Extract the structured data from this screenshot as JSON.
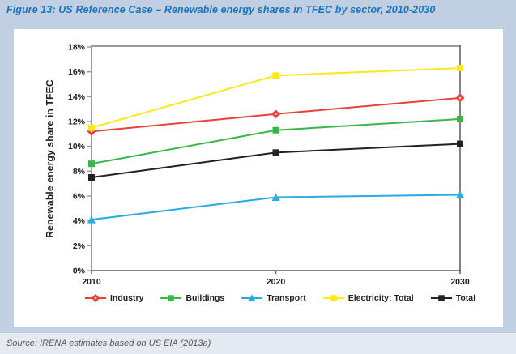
{
  "figure": {
    "title": "Figure 13: US Reference Case – Renewable energy shares in TFEC by sector, 2010-2030",
    "source": "Source: IRENA estimates based on US EIA (2013a)"
  },
  "chart_data": {
    "type": "line",
    "x": [
      2010,
      2020,
      2030
    ],
    "x_tick_labels": [
      "2010",
      "2020",
      "2030"
    ],
    "series": [
      {
        "name": "Industry",
        "values": [
          11.2,
          12.6,
          13.9
        ],
        "color": "#ea4039",
        "marker": "diamond"
      },
      {
        "name": "Buildings",
        "values": [
          8.6,
          11.3,
          12.2
        ],
        "color": "#3ab54a",
        "marker": "square"
      },
      {
        "name": "Transport",
        "values": [
          4.1,
          5.9,
          6.1
        ],
        "color": "#2aabe2",
        "marker": "triangle"
      },
      {
        "name": "Electricity: Total",
        "values": [
          11.5,
          15.7,
          16.3
        ],
        "color": "#fee81c",
        "marker": "square"
      },
      {
        "name": "Total",
        "values": [
          7.5,
          9.5,
          10.2
        ],
        "color": "#241f21",
        "marker": "square"
      }
    ],
    "title": "",
    "xlabel": "",
    "ylabel": "Renewable energy share in TFEC",
    "ylim": [
      0,
      18
    ],
    "y_tick_step": 2,
    "y_tick_labels": [
      "0%",
      "2%",
      "4%",
      "6%",
      "8%",
      "10%",
      "12%",
      "14%",
      "16%",
      "18%"
    ],
    "grid": false,
    "legend_position": "bottom"
  },
  "colors": {
    "title_blue": "#1b75bc",
    "page_background": "#c1cfe3",
    "card_background": "#ffffff",
    "source_band": "#e4e9f2",
    "axis_light": "#9a9a9a",
    "axis_dark": "#58595b",
    "tick_text": "#231f20"
  }
}
